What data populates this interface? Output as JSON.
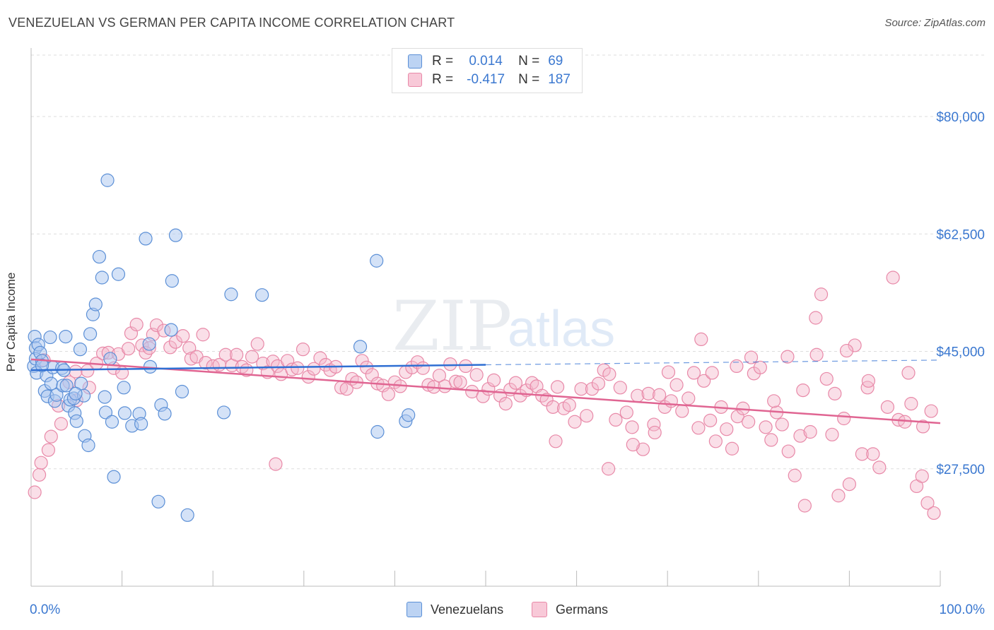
{
  "header": {
    "title": "VENEZUELAN VS GERMAN PER CAPITA INCOME CORRELATION CHART",
    "source": "Source: ZipAtlas.com"
  },
  "legend": {
    "r_label": "R =",
    "n_label": "N =",
    "venezuelans": {
      "r": "0.014",
      "n": "69"
    },
    "germans": {
      "r": "-0.417",
      "n": "187"
    }
  },
  "bottom_legend": {
    "venezuelans": "Venezuelans",
    "germans": "Germans"
  },
  "colors": {
    "venezuelan_fill": "#a9c6ef",
    "venezuelan_stroke": "#5b8fd6",
    "venezuelan_line": "#2f6fd3",
    "german_fill": "#f5b7cb",
    "german_stroke": "#e889a8",
    "german_line": "#e06592",
    "axis_text": "#3b78d0",
    "grid": "#dddddd"
  },
  "watermark": {
    "zip": "ZIP",
    "atlas": "atlas"
  },
  "chart_data": {
    "type": "scatter",
    "title": "VENEZUELAN VS GERMAN PER CAPITA INCOME CORRELATION CHART",
    "xlabel": "",
    "ylabel": "Per Capita Income",
    "xlim": [
      0,
      100
    ],
    "ylim": [
      10000,
      90000
    ],
    "x_tick_labels": [
      "0.0%",
      "100.0%"
    ],
    "y_ticks": [
      27500,
      45000,
      62500,
      80000
    ],
    "y_tick_labels": [
      "$27,500",
      "$45,000",
      "$62,500",
      "$80,000"
    ],
    "grid": true,
    "legend_position": "top-center",
    "series": [
      {
        "name": "Venezuelans",
        "points": [
          [
            0.3,
            42800
          ],
          [
            0.4,
            47200
          ],
          [
            0.5,
            45500
          ],
          [
            0.5,
            43900
          ],
          [
            0.6,
            41800
          ],
          [
            0.8,
            46000
          ],
          [
            1.0,
            44800
          ],
          [
            1.2,
            43600
          ],
          [
            1.5,
            39100
          ],
          [
            1.7,
            41400
          ],
          [
            1.8,
            38300
          ],
          [
            2.1,
            47100
          ],
          [
            2.2,
            40200
          ],
          [
            2.4,
            42600
          ],
          [
            2.6,
            37600
          ],
          [
            2.8,
            38500
          ],
          [
            3.4,
            42500
          ],
          [
            3.5,
            39900
          ],
          [
            3.6,
            42200
          ],
          [
            3.8,
            47200
          ],
          [
            3.9,
            39900
          ],
          [
            4.1,
            36900
          ],
          [
            4.3,
            37800
          ],
          [
            4.7,
            38000
          ],
          [
            4.8,
            35800
          ],
          [
            5.0,
            34600
          ],
          [
            5.4,
            45300
          ],
          [
            5.5,
            40200
          ],
          [
            5.8,
            38400
          ],
          [
            5.9,
            32400
          ],
          [
            6.3,
            31000
          ],
          [
            6.5,
            47600
          ],
          [
            6.8,
            50500
          ],
          [
            7.1,
            52000
          ],
          [
            7.5,
            59100
          ],
          [
            7.8,
            56000
          ],
          [
            8.1,
            38200
          ],
          [
            8.2,
            35900
          ],
          [
            8.4,
            70500
          ],
          [
            8.7,
            43900
          ],
          [
            8.9,
            34500
          ],
          [
            9.1,
            26300
          ],
          [
            9.6,
            56500
          ],
          [
            10.2,
            39600
          ],
          [
            10.3,
            35800
          ],
          [
            11.1,
            33900
          ],
          [
            11.9,
            35700
          ],
          [
            12.1,
            34200
          ],
          [
            12.6,
            61800
          ],
          [
            13.0,
            46100
          ],
          [
            13.1,
            42700
          ],
          [
            14.0,
            22600
          ],
          [
            14.3,
            37000
          ],
          [
            14.7,
            35700
          ],
          [
            15.4,
            48200
          ],
          [
            15.5,
            55500
          ],
          [
            15.9,
            62300
          ],
          [
            16.6,
            39000
          ],
          [
            17.2,
            20600
          ],
          [
            21.2,
            35900
          ],
          [
            22.0,
            53500
          ],
          [
            25.4,
            53400
          ],
          [
            36.2,
            45700
          ],
          [
            38.0,
            58500
          ],
          [
            38.1,
            33000
          ],
          [
            41.2,
            34600
          ],
          [
            41.5,
            35500
          ],
          [
            4.9,
            38700
          ],
          [
            1.2,
            42900
          ]
        ]
      },
      {
        "name": "Germans",
        "points": [
          [
            0.4,
            24000
          ],
          [
            0.9,
            26600
          ],
          [
            1.1,
            28400
          ],
          [
            1.4,
            43700
          ],
          [
            1.9,
            30300
          ],
          [
            2.2,
            32300
          ],
          [
            3.0,
            36900
          ],
          [
            3.3,
            34200
          ],
          [
            4.2,
            40400
          ],
          [
            4.9,
            42000
          ],
          [
            5.0,
            37700
          ],
          [
            6.2,
            42100
          ],
          [
            6.4,
            39600
          ],
          [
            7.2,
            43200
          ],
          [
            7.9,
            44700
          ],
          [
            8.5,
            44800
          ],
          [
            9.1,
            42500
          ],
          [
            9.6,
            44600
          ],
          [
            10.0,
            41800
          ],
          [
            10.7,
            45400
          ],
          [
            11.0,
            47700
          ],
          [
            11.6,
            49000
          ],
          [
            12.2,
            45900
          ],
          [
            12.6,
            44800
          ],
          [
            13.0,
            45500
          ],
          [
            13.4,
            47500
          ],
          [
            13.8,
            48900
          ],
          [
            14.6,
            48100
          ],
          [
            15.3,
            45600
          ],
          [
            15.9,
            46400
          ],
          [
            16.7,
            47300
          ],
          [
            17.4,
            45500
          ],
          [
            17.6,
            43900
          ],
          [
            18.2,
            44200
          ],
          [
            18.9,
            47500
          ],
          [
            19.2,
            43300
          ],
          [
            20.0,
            42800
          ],
          [
            20.7,
            43000
          ],
          [
            21.4,
            44500
          ],
          [
            22.1,
            42900
          ],
          [
            22.6,
            44500
          ],
          [
            23.2,
            42700
          ],
          [
            23.7,
            42200
          ],
          [
            24.3,
            44200
          ],
          [
            24.9,
            46100
          ],
          [
            25.5,
            43200
          ],
          [
            26.0,
            41900
          ],
          [
            26.6,
            43500
          ],
          [
            27.1,
            42800
          ],
          [
            27.5,
            41600
          ],
          [
            28.2,
            43600
          ],
          [
            28.7,
            42300
          ],
          [
            29.3,
            42500
          ],
          [
            29.9,
            45300
          ],
          [
            30.5,
            41200
          ],
          [
            31.1,
            42400
          ],
          [
            31.8,
            44000
          ],
          [
            32.4,
            43000
          ],
          [
            32.9,
            42200
          ],
          [
            33.5,
            42700
          ],
          [
            34.1,
            39600
          ],
          [
            34.7,
            39400
          ],
          [
            35.3,
            40900
          ],
          [
            35.8,
            40400
          ],
          [
            36.4,
            43600
          ],
          [
            36.9,
            42600
          ],
          [
            37.5,
            41500
          ],
          [
            38.1,
            40200
          ],
          [
            38.7,
            39900
          ],
          [
            39.3,
            38600
          ],
          [
            40.0,
            40400
          ],
          [
            40.6,
            39800
          ],
          [
            41.2,
            41900
          ],
          [
            41.9,
            42600
          ],
          [
            42.5,
            43400
          ],
          [
            43.1,
            42500
          ],
          [
            43.7,
            40000
          ],
          [
            44.3,
            39700
          ],
          [
            44.9,
            41400
          ],
          [
            45.5,
            39800
          ],
          [
            46.1,
            43100
          ],
          [
            46.7,
            40500
          ],
          [
            47.2,
            40400
          ],
          [
            47.8,
            42800
          ],
          [
            48.5,
            39000
          ],
          [
            49.0,
            41500
          ],
          [
            49.7,
            38300
          ],
          [
            50.3,
            39400
          ],
          [
            50.9,
            40700
          ],
          [
            51.6,
            38400
          ],
          [
            52.2,
            37200
          ],
          [
            52.7,
            39300
          ],
          [
            53.3,
            40300
          ],
          [
            53.8,
            38400
          ],
          [
            54.5,
            39200
          ],
          [
            55.1,
            40300
          ],
          [
            55.6,
            39800
          ],
          [
            56.2,
            38400
          ],
          [
            56.7,
            37800
          ],
          [
            57.4,
            36700
          ],
          [
            57.9,
            39700
          ],
          [
            58.6,
            36500
          ],
          [
            59.2,
            37000
          ],
          [
            59.8,
            34500
          ],
          [
            60.5,
            39400
          ],
          [
            61.1,
            35400
          ],
          [
            61.7,
            39400
          ],
          [
            62.4,
            40200
          ],
          [
            63.0,
            42200
          ],
          [
            63.6,
            41600
          ],
          [
            64.3,
            34800
          ],
          [
            64.8,
            39600
          ],
          [
            65.5,
            35900
          ],
          [
            66.1,
            33700
          ],
          [
            66.7,
            38400
          ],
          [
            67.3,
            30400
          ],
          [
            67.9,
            38700
          ],
          [
            68.5,
            34100
          ],
          [
            69.1,
            38500
          ],
          [
            69.7,
            36700
          ],
          [
            70.4,
            37600
          ],
          [
            71.0,
            40000
          ],
          [
            71.6,
            36100
          ],
          [
            72.3,
            38000
          ],
          [
            72.9,
            41800
          ],
          [
            73.4,
            33600
          ],
          [
            74.0,
            40600
          ],
          [
            74.7,
            34700
          ],
          [
            75.3,
            31600
          ],
          [
            75.9,
            36700
          ],
          [
            76.5,
            33400
          ],
          [
            77.1,
            30500
          ],
          [
            77.7,
            35300
          ],
          [
            78.3,
            36500
          ],
          [
            78.9,
            34500
          ],
          [
            79.5,
            41700
          ],
          [
            80.2,
            42600
          ],
          [
            80.8,
            33700
          ],
          [
            81.4,
            31800
          ],
          [
            82.0,
            35900
          ],
          [
            82.6,
            34100
          ],
          [
            83.3,
            30100
          ],
          [
            84.0,
            26500
          ],
          [
            84.6,
            32400
          ],
          [
            85.1,
            22000
          ],
          [
            85.7,
            33000
          ],
          [
            86.3,
            50000
          ],
          [
            86.9,
            53500
          ],
          [
            87.5,
            40900
          ],
          [
            88.1,
            32600
          ],
          [
            88.8,
            23500
          ],
          [
            89.4,
            35000
          ],
          [
            90.0,
            25200
          ],
          [
            90.6,
            45900
          ],
          [
            91.4,
            29700
          ],
          [
            92.0,
            39600
          ],
          [
            92.6,
            29700
          ],
          [
            93.3,
            27700
          ],
          [
            94.8,
            56000
          ],
          [
            95.4,
            34800
          ],
          [
            96.1,
            34500
          ],
          [
            96.8,
            37200
          ],
          [
            97.4,
            24900
          ],
          [
            98.0,
            26400
          ],
          [
            98.6,
            22400
          ],
          [
            99.3,
            20900
          ],
          [
            57.7,
            31600
          ],
          [
            26.9,
            28200
          ],
          [
            63.5,
            27500
          ],
          [
            68.6,
            32900
          ],
          [
            74.9,
            41800
          ],
          [
            79.2,
            44100
          ],
          [
            83.2,
            44200
          ],
          [
            86.4,
            44500
          ],
          [
            89.7,
            45100
          ],
          [
            92.1,
            40600
          ],
          [
            94.2,
            36700
          ],
          [
            96.5,
            41800
          ],
          [
            98.1,
            33800
          ],
          [
            99.0,
            36100
          ],
          [
            66.2,
            31100
          ],
          [
            70.1,
            41900
          ],
          [
            73.7,
            46800
          ],
          [
            77.6,
            42800
          ],
          [
            81.7,
            37600
          ],
          [
            84.9,
            39200
          ],
          [
            88.4,
            38700
          ]
        ]
      }
    ],
    "trend_lines": [
      {
        "name": "Venezuelans",
        "x": [
          0,
          50
        ],
        "y": [
          42200,
          43000
        ],
        "dashed_extension_to": [
          100,
          43700
        ]
      },
      {
        "name": "Germans",
        "x": [
          0,
          100
        ],
        "y": [
          43800,
          34300
        ]
      }
    ]
  }
}
